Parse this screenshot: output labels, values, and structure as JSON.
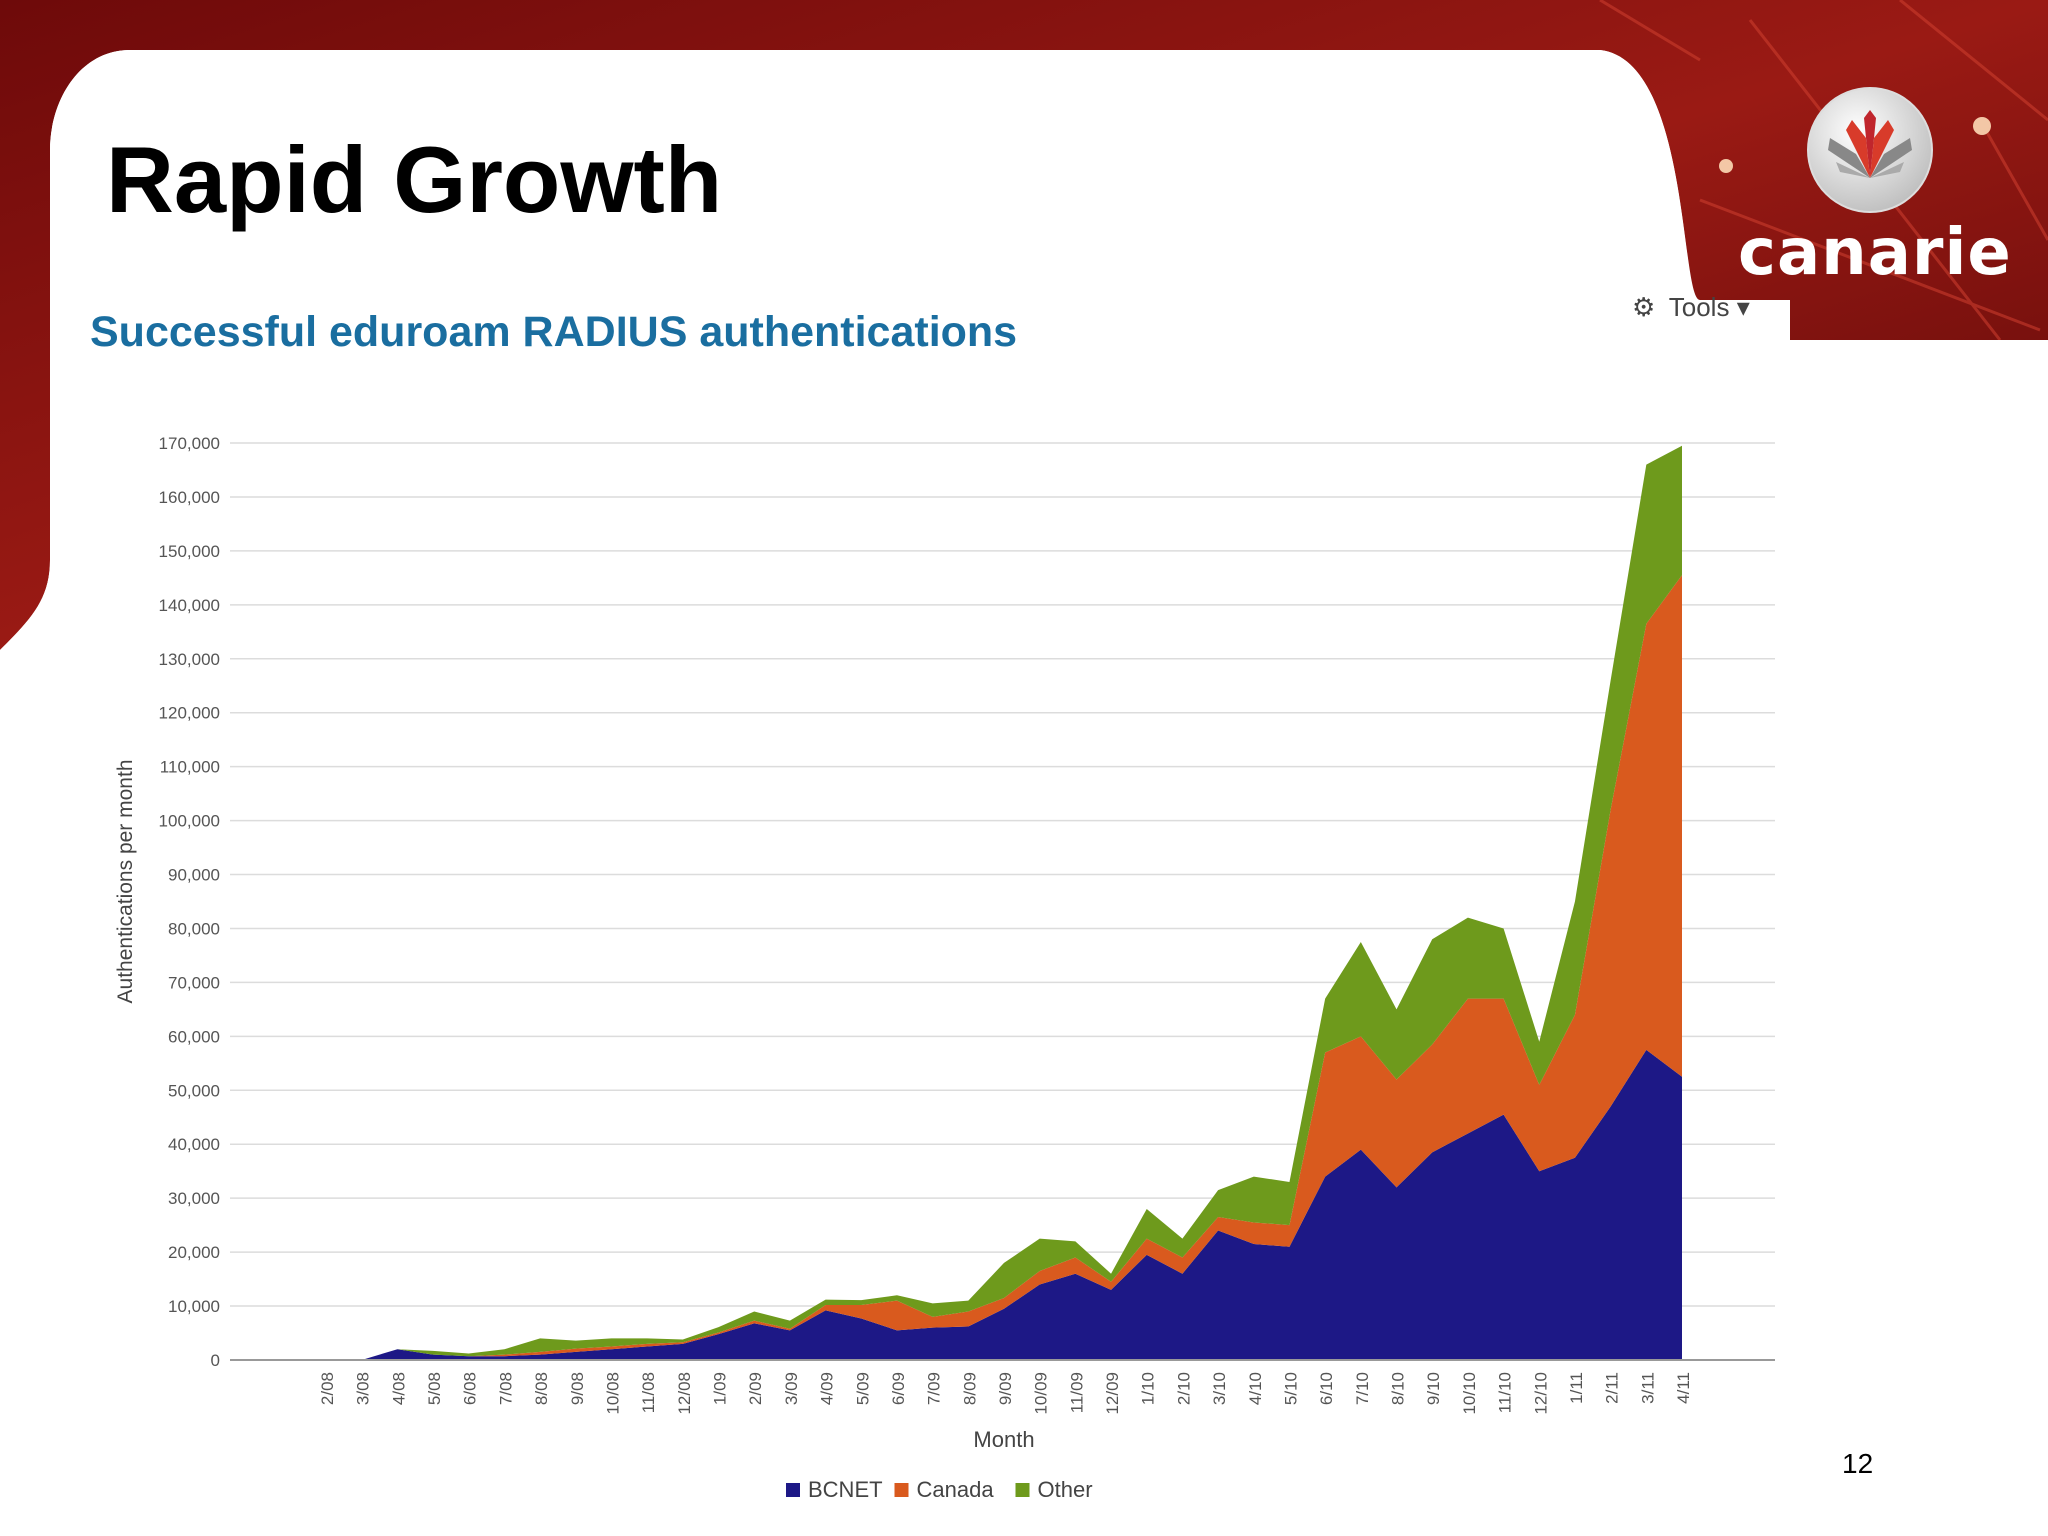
{
  "slide": {
    "title": "Rapid Growth",
    "page_number": "12",
    "logo_text": "canarie",
    "tools_label": "Tools"
  },
  "colors": {
    "bcnet": "#1d1886",
    "canada": "#d95a1e",
    "other": "#6e9a1c",
    "chart_title": "#1a6ea0",
    "brand_red": "#8a1212"
  },
  "chart_data": {
    "type": "area",
    "stacked": true,
    "title": "Successful eduroam RADIUS authentications",
    "xlabel": "Month",
    "ylabel": "Authentications per month",
    "ylim": [
      0,
      170000
    ],
    "yticks": [
      "0",
      "10,000",
      "20,000",
      "30,000",
      "40,000",
      "50,000",
      "60,000",
      "70,000",
      "80,000",
      "90,000",
      "100,000",
      "110,000",
      "120,000",
      "130,000",
      "140,000",
      "150,000",
      "160,000",
      "170,000"
    ],
    "grid": true,
    "legend_position": "bottom",
    "categories": [
      "2/08",
      "3/08",
      "4/08",
      "5/08",
      "6/08",
      "7/08",
      "8/08",
      "9/08",
      "10/08",
      "11/08",
      "12/08",
      "1/09",
      "2/09",
      "3/09",
      "4/09",
      "5/09",
      "6/09",
      "7/09",
      "8/09",
      "9/09",
      "10/09",
      "11/09",
      "12/09",
      "1/10",
      "2/10",
      "3/10",
      "4/10",
      "5/10",
      "6/10",
      "7/10",
      "8/10",
      "9/10",
      "10/10",
      "11/10",
      "12/10",
      "1/11",
      "2/11",
      "3/11",
      "4/11"
    ],
    "series": [
      {
        "name": "BCNET",
        "values": [
          0,
          0,
          2000,
          1000,
          700,
          700,
          1000,
          1500,
          2000,
          2500,
          3000,
          4800,
          6800,
          5500,
          9200,
          7700,
          5500,
          6000,
          6200,
          9500,
          14000,
          16000,
          13000,
          19500,
          16000,
          24000,
          21500,
          21000,
          34000,
          39000,
          32000,
          38500,
          42000,
          45500,
          35000,
          37500,
          47000,
          57500,
          52500
        ]
      },
      {
        "name": "Canada",
        "values": [
          0,
          0,
          0,
          0,
          0,
          300,
          500,
          600,
          500,
          500,
          300,
          300,
          500,
          300,
          1000,
          2500,
          5500,
          2000,
          2800,
          2000,
          2500,
          3000,
          1500,
          3000,
          3000,
          2500,
          4000,
          4000,
          23000,
          21000,
          20000,
          20000,
          25000,
          21500,
          16000,
          26500,
          55000,
          79000,
          93000
        ]
      },
      {
        "name": "Other",
        "values": [
          0,
          0,
          0,
          700,
          500,
          1000,
          2500,
          1500,
          1500,
          1000,
          500,
          1000,
          1700,
          1500,
          1000,
          900,
          1000,
          2500,
          2000,
          6500,
          6000,
          3000,
          1500,
          5500,
          3500,
          5000,
          8500,
          8000,
          10000,
          17500,
          13000,
          19500,
          15000,
          13000,
          8000,
          21000,
          24000,
          29500,
          24000
        ]
      }
    ]
  }
}
